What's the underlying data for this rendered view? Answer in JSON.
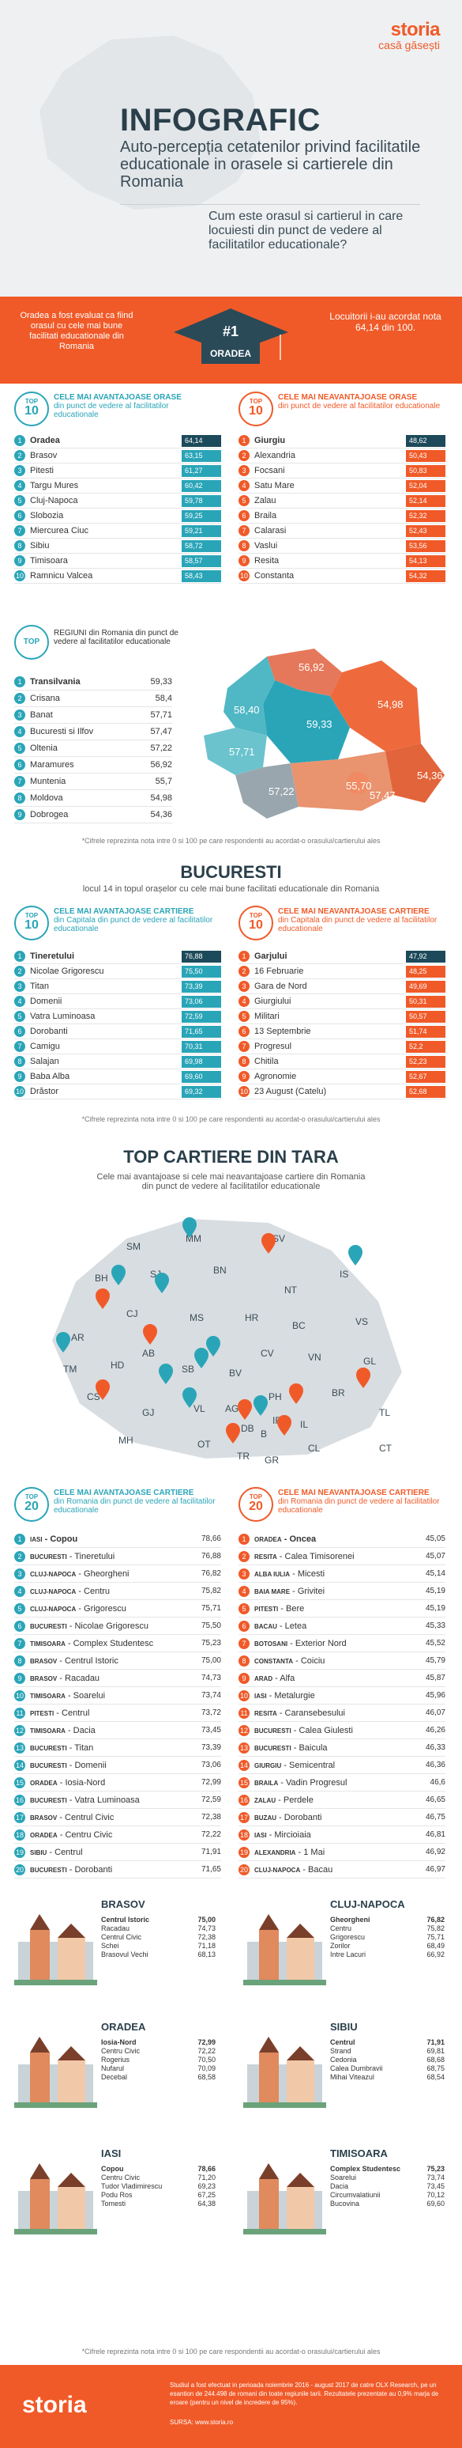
{
  "brand": {
    "logo": "storia",
    "tagline": "casă găsești"
  },
  "hero": {
    "title": "INFOGRAFIC",
    "subtitle": "Auto-percepția cetatenilor privind facilitatile educationale in orasele si cartierele din Romania",
    "question": "Cum este orasul si cartierul in care locuiesti din punct de vedere al facilitatilor educationale?"
  },
  "banner": {
    "left": "Oradea a fost evaluat ca fiind orasul cu cele mai bune facilitati educationale din Romania",
    "rank": "#1",
    "city": "ORADEA",
    "right": "Locuitorii i-au acordat nota 64,14 din 100."
  },
  "cities_best": {
    "badge_top": "TOP",
    "badge_num": "10",
    "title_bold": "CELE MAI AVANTAJOASE ORASE",
    "title_rest": "din punct de vedere al facilitatilor educationale",
    "rows": [
      [
        "Oradea",
        "64,14"
      ],
      [
        "Brasov",
        "63,15"
      ],
      [
        "Pitesti",
        "61,27"
      ],
      [
        "Targu Mures",
        "60,42"
      ],
      [
        "Cluj-Napoca",
        "59,78"
      ],
      [
        "Slobozia",
        "59,25"
      ],
      [
        "Miercurea Ciuc",
        "59,21"
      ],
      [
        "Sibiu",
        "58,72"
      ],
      [
        "Timisoara",
        "58,57"
      ],
      [
        "Ramnicu Valcea",
        "58,43"
      ]
    ]
  },
  "cities_worst": {
    "badge_top": "TOP",
    "badge_num": "10",
    "title_bold": "CELE MAI NEAVANTAJOASE ORASE",
    "title_rest": "din punct de vedere al facilitatilor educationale",
    "rows": [
      [
        "Giurgiu",
        "48,62"
      ],
      [
        "Alexandria",
        "50,43"
      ],
      [
        "Focsani",
        "50,83"
      ],
      [
        "Satu Mare",
        "52,04"
      ],
      [
        "Zalau",
        "52,14"
      ],
      [
        "Braila",
        "52,32"
      ],
      [
        "Calarasi",
        "52,43"
      ],
      [
        "Vaslui",
        "53,56"
      ],
      [
        "Resita",
        "54,13"
      ],
      [
        "Constanta",
        "54,32"
      ]
    ]
  },
  "regions": {
    "badge": "TOP",
    "title": "REGIUNI din Romania din punct de vedere al facilitatilor educationale",
    "rows": [
      [
        "Transilvania",
        "59,33"
      ],
      [
        "Crisana",
        "58,4"
      ],
      [
        "Banat",
        "57,71"
      ],
      [
        "Bucuresti si Ilfov",
        "57,47"
      ],
      [
        "Oltenia",
        "57,22"
      ],
      [
        "Maramures",
        "56,92"
      ],
      [
        "Muntenia",
        "55,7"
      ],
      [
        "Moldova",
        "54,98"
      ],
      [
        "Dobrogea",
        "54,36"
      ]
    ],
    "map_labels": [
      "56,92",
      "54,98",
      "59,33",
      "58,40",
      "57,71",
      "57,22",
      "55,70",
      "57,47",
      "54,36"
    ]
  },
  "note": "*Cifrele reprezinta nota intre 0 si 100 pe care respondentii au acordat-o orasului/cartierului ales",
  "bucuresti": {
    "title": "BUCURESTI",
    "subtitle": "locul 14 in topul orașelor cu cele mai bune facilitati educationale din Romania",
    "best": {
      "badge_top": "TOP",
      "badge_num": "10",
      "title_bold": "CELE MAI AVANTAJOASE CARTIERE",
      "title_rest": "din Capitala din punct de vedere al facilitatilor educationale",
      "rows": [
        [
          "Tineretului",
          "76,88"
        ],
        [
          "Nicolae Grigorescu",
          "75,50"
        ],
        [
          "Titan",
          "73,39"
        ],
        [
          "Domenii",
          "73,06"
        ],
        [
          "Vatra Luminoasa",
          "72,59"
        ],
        [
          "Dorobanti",
          "71,65"
        ],
        [
          "Camigu",
          "70,31"
        ],
        [
          "Salajan",
          "69,98"
        ],
        [
          "Baba Alba",
          "69,60"
        ],
        [
          "Drăstor",
          "69,32"
        ]
      ]
    },
    "worst": {
      "badge_top": "TOP",
      "badge_num": "10",
      "title_bold": "CELE MAI NEAVANTAJOASE CARTIERE",
      "title_rest": "din Capitala din punct de vedere al facilitatilor educationale",
      "rows": [
        [
          "Garjului",
          "47,92"
        ],
        [
          "16 Februarie",
          "48,25"
        ],
        [
          "Gara de Nord",
          "49,69"
        ],
        [
          "Giurgiului",
          "50,31"
        ],
        [
          "Militari",
          "50,57"
        ],
        [
          "13 Septembrie",
          "51,74"
        ],
        [
          "Progresul",
          "52,2"
        ],
        [
          "Chitila",
          "52,23"
        ],
        [
          "Agronomie",
          "52,67"
        ],
        [
          "23 August (Catelu)",
          "52,68"
        ]
      ]
    }
  },
  "country": {
    "title": "TOP CARTIERE DIN TARA",
    "subtitle": "Cele mai avantajoase si cele mai neavantajoase cartiere din Romania din punct de vedere al facilitatilor educationale",
    "map_codes": [
      "SM",
      "MM",
      "SV",
      "BH",
      "SJ",
      "BN",
      "IS",
      "CJ",
      "NT",
      "VS",
      "MS",
      "HR",
      "BC",
      "AR",
      "AB",
      "CV",
      "VN",
      "GL",
      "HD",
      "SB",
      "BV",
      "TM",
      "CS",
      "GJ",
      "VL",
      "AG",
      "PH",
      "BR",
      "MH",
      "DB",
      "IL",
      "TL",
      "OT",
      "TR",
      "CL",
      "CT",
      "IF",
      "B",
      "GR"
    ]
  },
  "top20_best": {
    "badge_top": "TOP",
    "badge_num": "20",
    "title_bold": "CELE MAI AVANTAJOASE CARTIERE",
    "title_rest": "din Romania din punct de vedere al facilitatilor educationale",
    "rows": [
      [
        "IASI",
        "Copou",
        "78,66"
      ],
      [
        "BUCURESTI",
        "Tineretului",
        "76,88"
      ],
      [
        "CLUJ-NAPOCA",
        "Gheorgheni",
        "76,82"
      ],
      [
        "CLUJ-NAPOCA",
        "Centru",
        "75,82"
      ],
      [
        "CLUJ-NAPOCA",
        "Grigorescu",
        "75,71"
      ],
      [
        "BUCURESTI",
        "Nicolae Grigorescu",
        "75,50"
      ],
      [
        "TIMISOARA",
        "Complex Studentesc",
        "75,23"
      ],
      [
        "BRASOV",
        "Centrul Istoric",
        "75,00"
      ],
      [
        "BRASOV",
        "Racadau",
        "74,73"
      ],
      [
        "TIMISOARA",
        "Soarelui",
        "73,74"
      ],
      [
        "PITESTI",
        "Centrul",
        "73,72"
      ],
      [
        "TIMISOARA",
        "Dacia",
        "73,45"
      ],
      [
        "BUCURESTI",
        "Titan",
        "73,39"
      ],
      [
        "BUCURESTI",
        "Domenii",
        "73,06"
      ],
      [
        "ORADEA",
        "Iosia-Nord",
        "72,99"
      ],
      [
        "BUCURESTI",
        "Vatra Luminoasa",
        "72,59"
      ],
      [
        "BRASOV",
        "Centrul Civic",
        "72,38"
      ],
      [
        "ORADEA",
        "Centru Civic",
        "72,22"
      ],
      [
        "SIBIU",
        "Centrul",
        "71,91"
      ],
      [
        "BUCURESTI",
        "Dorobanti",
        "71,65"
      ]
    ]
  },
  "top20_worst": {
    "badge_top": "TOP",
    "badge_num": "20",
    "title_bold": "CELE MAI NEAVANTAJOASE CARTIERE",
    "title_rest": "din Romania din punct de vedere al facilitatilor educationale",
    "rows": [
      [
        "ORADEA",
        "Oncea",
        "45,05"
      ],
      [
        "RESITA",
        "Calea Timisorenei",
        "45,07"
      ],
      [
        "ALBA IULIA",
        "Micesti",
        "45,14"
      ],
      [
        "BAIA MARE",
        "Grivitei",
        "45,19"
      ],
      [
        "PITESTI",
        "Bere",
        "45,19"
      ],
      [
        "BACAU",
        "Letea",
        "45,33"
      ],
      [
        "BOTOSANI",
        "Exterior Nord",
        "45,52"
      ],
      [
        "CONSTANTA",
        "Coiciu",
        "45,79"
      ],
      [
        "ARAD",
        "Alfa",
        "45,87"
      ],
      [
        "IASI",
        "Metalurgie",
        "45,96"
      ],
      [
        "RESITA",
        "Caransebesului",
        "46,07"
      ],
      [
        "BUCURESTI",
        "Calea Giulesti",
        "46,26"
      ],
      [
        "BUCURESTI",
        "Baicula",
        "46,33"
      ],
      [
        "GIURGIU",
        "Semicentral",
        "46,36"
      ],
      [
        "BRAILA",
        "Vadin Progresul",
        "46,6"
      ],
      [
        "ZALAU",
        "Perdele",
        "46,65"
      ],
      [
        "BUZAU",
        "Dorobanti",
        "46,75"
      ],
      [
        "IASI",
        "Mircioiaia",
        "46,81"
      ],
      [
        "ALEXANDRIA",
        "1 Mai",
        "46,92"
      ],
      [
        "CLUJ-NAPOCA",
        "Bacau",
        "46,97"
      ]
    ]
  },
  "city_cards": [
    {
      "city": "BRASOV",
      "rows": [
        [
          "Centrul Istoric",
          "75,00"
        ],
        [
          "Racadau",
          "74,73"
        ],
        [
          "Centrul Civic",
          "72,38"
        ],
        [
          "Schei",
          "71,18"
        ],
        [
          "Brasovul Vechi",
          "68,13"
        ]
      ]
    },
    {
      "city": "CLUJ-NAPOCA",
      "rows": [
        [
          "Gheorgheni",
          "76,82"
        ],
        [
          "Centru",
          "75,82"
        ],
        [
          "Grigorescu",
          "75,71"
        ],
        [
          "Zorilor",
          "68,49"
        ],
        [
          "Intre Lacuri",
          "66,92"
        ]
      ]
    },
    {
      "city": "ORADEA",
      "rows": [
        [
          "Iosia-Nord",
          "72,99"
        ],
        [
          "Centru Civic",
          "72,22"
        ],
        [
          "Rogerius",
          "70,50"
        ],
        [
          "Nufarul",
          "70,09"
        ],
        [
          "Decebal",
          "68,58"
        ]
      ]
    },
    {
      "city": "SIBIU",
      "rows": [
        [
          "Centrul",
          "71,91"
        ],
        [
          "Strand",
          "69,81"
        ],
        [
          "Cedonia",
          "68,68"
        ],
        [
          "Calea Dumbravii",
          "68,75"
        ],
        [
          "Mihai Viteazul",
          "68,54"
        ]
      ]
    },
    {
      "city": "IASI",
      "rows": [
        [
          "Copou",
          "78,66"
        ],
        [
          "Centru Civic",
          "71,20"
        ],
        [
          "Tudor Vladimirescu",
          "69,23"
        ],
        [
          "Podu Ros",
          "67,25"
        ],
        [
          "Tomesti",
          "64,38"
        ]
      ]
    },
    {
      "city": "TIMISOARA",
      "rows": [
        [
          "Complex Studentesc",
          "75,23"
        ],
        [
          "Soarelui",
          "73,74"
        ],
        [
          "Dacia",
          "73,45"
        ],
        [
          "Circumvalatiunii",
          "70,12"
        ],
        [
          "Bucovina",
          "69,60"
        ]
      ]
    }
  ],
  "footer": {
    "logo": "storia",
    "text": "Studiul a fost efectuat in perioada noiembrie 2016 - august 2017 de catre OLX Research, pe un esantion de 244.498 de romani din toate regiunile tarii. Rezultatele prezentate au 0,9% marja de eroare (pentru un nivel de incredere de 95%).",
    "source": "SURSA: www.storia.ro"
  }
}
